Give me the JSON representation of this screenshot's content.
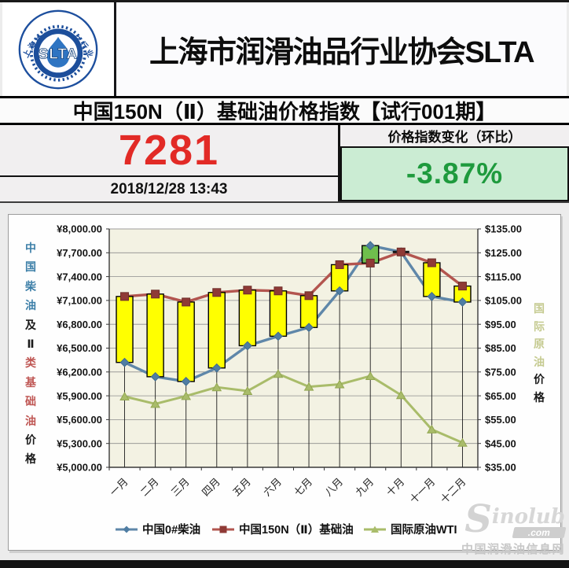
{
  "page": {
    "header": {
      "logo": {
        "abbr": "SLTA",
        "ring_text": "上海市润滑油品行业协会"
      },
      "title": "上海市润滑油品行业协会SLTA"
    },
    "index_bar": {
      "title": "中国150N（Ⅱ）基础油价格指数【试行001期】"
    },
    "index_panel": {
      "value": "7281",
      "timestamp": "2018/12/28 13:43",
      "change_label": "价格指数变化（环比）",
      "change_value": "-3.87%",
      "value_color": "#e22a26",
      "change_color": "#1e9a3d",
      "change_bg": "#cbecd3"
    },
    "watermark": {
      "s": "S",
      "name": "inolub",
      "dotcom": ".com",
      "site": "中国润滑油信息网"
    }
  },
  "chart_data": {
    "type": "line",
    "subtype": "dual-axis lines with up-down bars and drop lines",
    "categories": [
      "一月",
      "二月",
      "三月",
      "四月",
      "五月",
      "六月",
      "七月",
      "八月",
      "九月",
      "十月",
      "十一月",
      "十二月"
    ],
    "series": [
      {
        "name": "中国0#柴油",
        "axis": "left",
        "color": "#5f87a9",
        "marker": "diamond",
        "marker_color": "#4f7da3",
        "values": [
          6320,
          6140,
          6080,
          6250,
          6530,
          6650,
          6760,
          7220,
          7790,
          7710,
          7150,
          7080
        ]
      },
      {
        "name": "中国150N（Ⅱ）基础油",
        "axis": "left",
        "color": "#b3554f",
        "marker": "square",
        "marker_color": "#8f3a36",
        "values": [
          7150,
          7180,
          7080,
          7200,
          7230,
          7220,
          7160,
          7550,
          7570,
          7710,
          7574,
          7281
        ]
      },
      {
        "name": "国际原油WTI",
        "axis": "right",
        "color": "#a9bc6a",
        "marker": "triangle",
        "marker_color": "#a9bc6a",
        "values": [
          64.7,
          61.6,
          64.9,
          68.6,
          67.0,
          74.2,
          68.8,
          69.8,
          73.3,
          65.3,
          50.9,
          45.3
        ]
      }
    ],
    "updown_bars": {
      "between": [
        "中国150N（Ⅱ）基础油",
        "中国0#柴油"
      ],
      "red_above_color": "#ffff00",
      "blue_above_color": "#6fbf4d"
    },
    "axes": {
      "left": {
        "min": 5000,
        "max": 8000,
        "step": 300,
        "ticks": [
          "¥8,000.00",
          "¥7,700.00",
          "¥7,400.00",
          "¥7,100.00",
          "¥6,800.00",
          "¥6,500.00",
          "¥6,200.00",
          "¥5,900.00",
          "¥5,600.00",
          "¥5,300.00",
          "¥5,000.00"
        ],
        "title": "中国柴油及Ⅱ类基础油价格",
        "title_chars": [
          {
            "ch": "中",
            "color": "#3d7fa8"
          },
          {
            "ch": "国",
            "color": "#3d7fa8"
          },
          {
            "ch": "柴",
            "color": "#3d7fa8"
          },
          {
            "ch": "油",
            "color": "#3d7fa8"
          },
          {
            "ch": "及",
            "color": "#1a1a1a"
          },
          {
            "ch": "Ⅱ",
            "color": "#1a1a1a"
          },
          {
            "ch": "类",
            "color": "#bf5653"
          },
          {
            "ch": "基",
            "color": "#bf5653"
          },
          {
            "ch": "础",
            "color": "#bf5653"
          },
          {
            "ch": "油",
            "color": "#bf5653"
          },
          {
            "ch": "价",
            "color": "#1a1a1a"
          },
          {
            "ch": "格",
            "color": "#1a1a1a"
          }
        ]
      },
      "right": {
        "min": 35,
        "max": 135,
        "step": 10,
        "ticks": [
          "$135.00",
          "$125.00",
          "$115.00",
          "$105.00",
          "$95.00",
          "$85.00",
          "$75.00",
          "$65.00",
          "$55.00",
          "$45.00",
          "$35.00"
        ],
        "title": "国际原油价格",
        "title_chars": [
          {
            "ch": "国",
            "color": "#c5ca90"
          },
          {
            "ch": "际",
            "color": "#c5ca90"
          },
          {
            "ch": "原",
            "color": "#c5ca90"
          },
          {
            "ch": "油",
            "color": "#c5ca90"
          },
          {
            "ch": "价",
            "color": "#1a1a1a"
          },
          {
            "ch": "格",
            "color": "#1a1a1a"
          }
        ]
      }
    },
    "legend": {
      "position": "bottom",
      "items": [
        "中国0#柴油",
        "中国150N（Ⅱ）基础油",
        "国际原油WTI"
      ]
    },
    "plot_bg": "#f3f2e3",
    "grid": true
  }
}
